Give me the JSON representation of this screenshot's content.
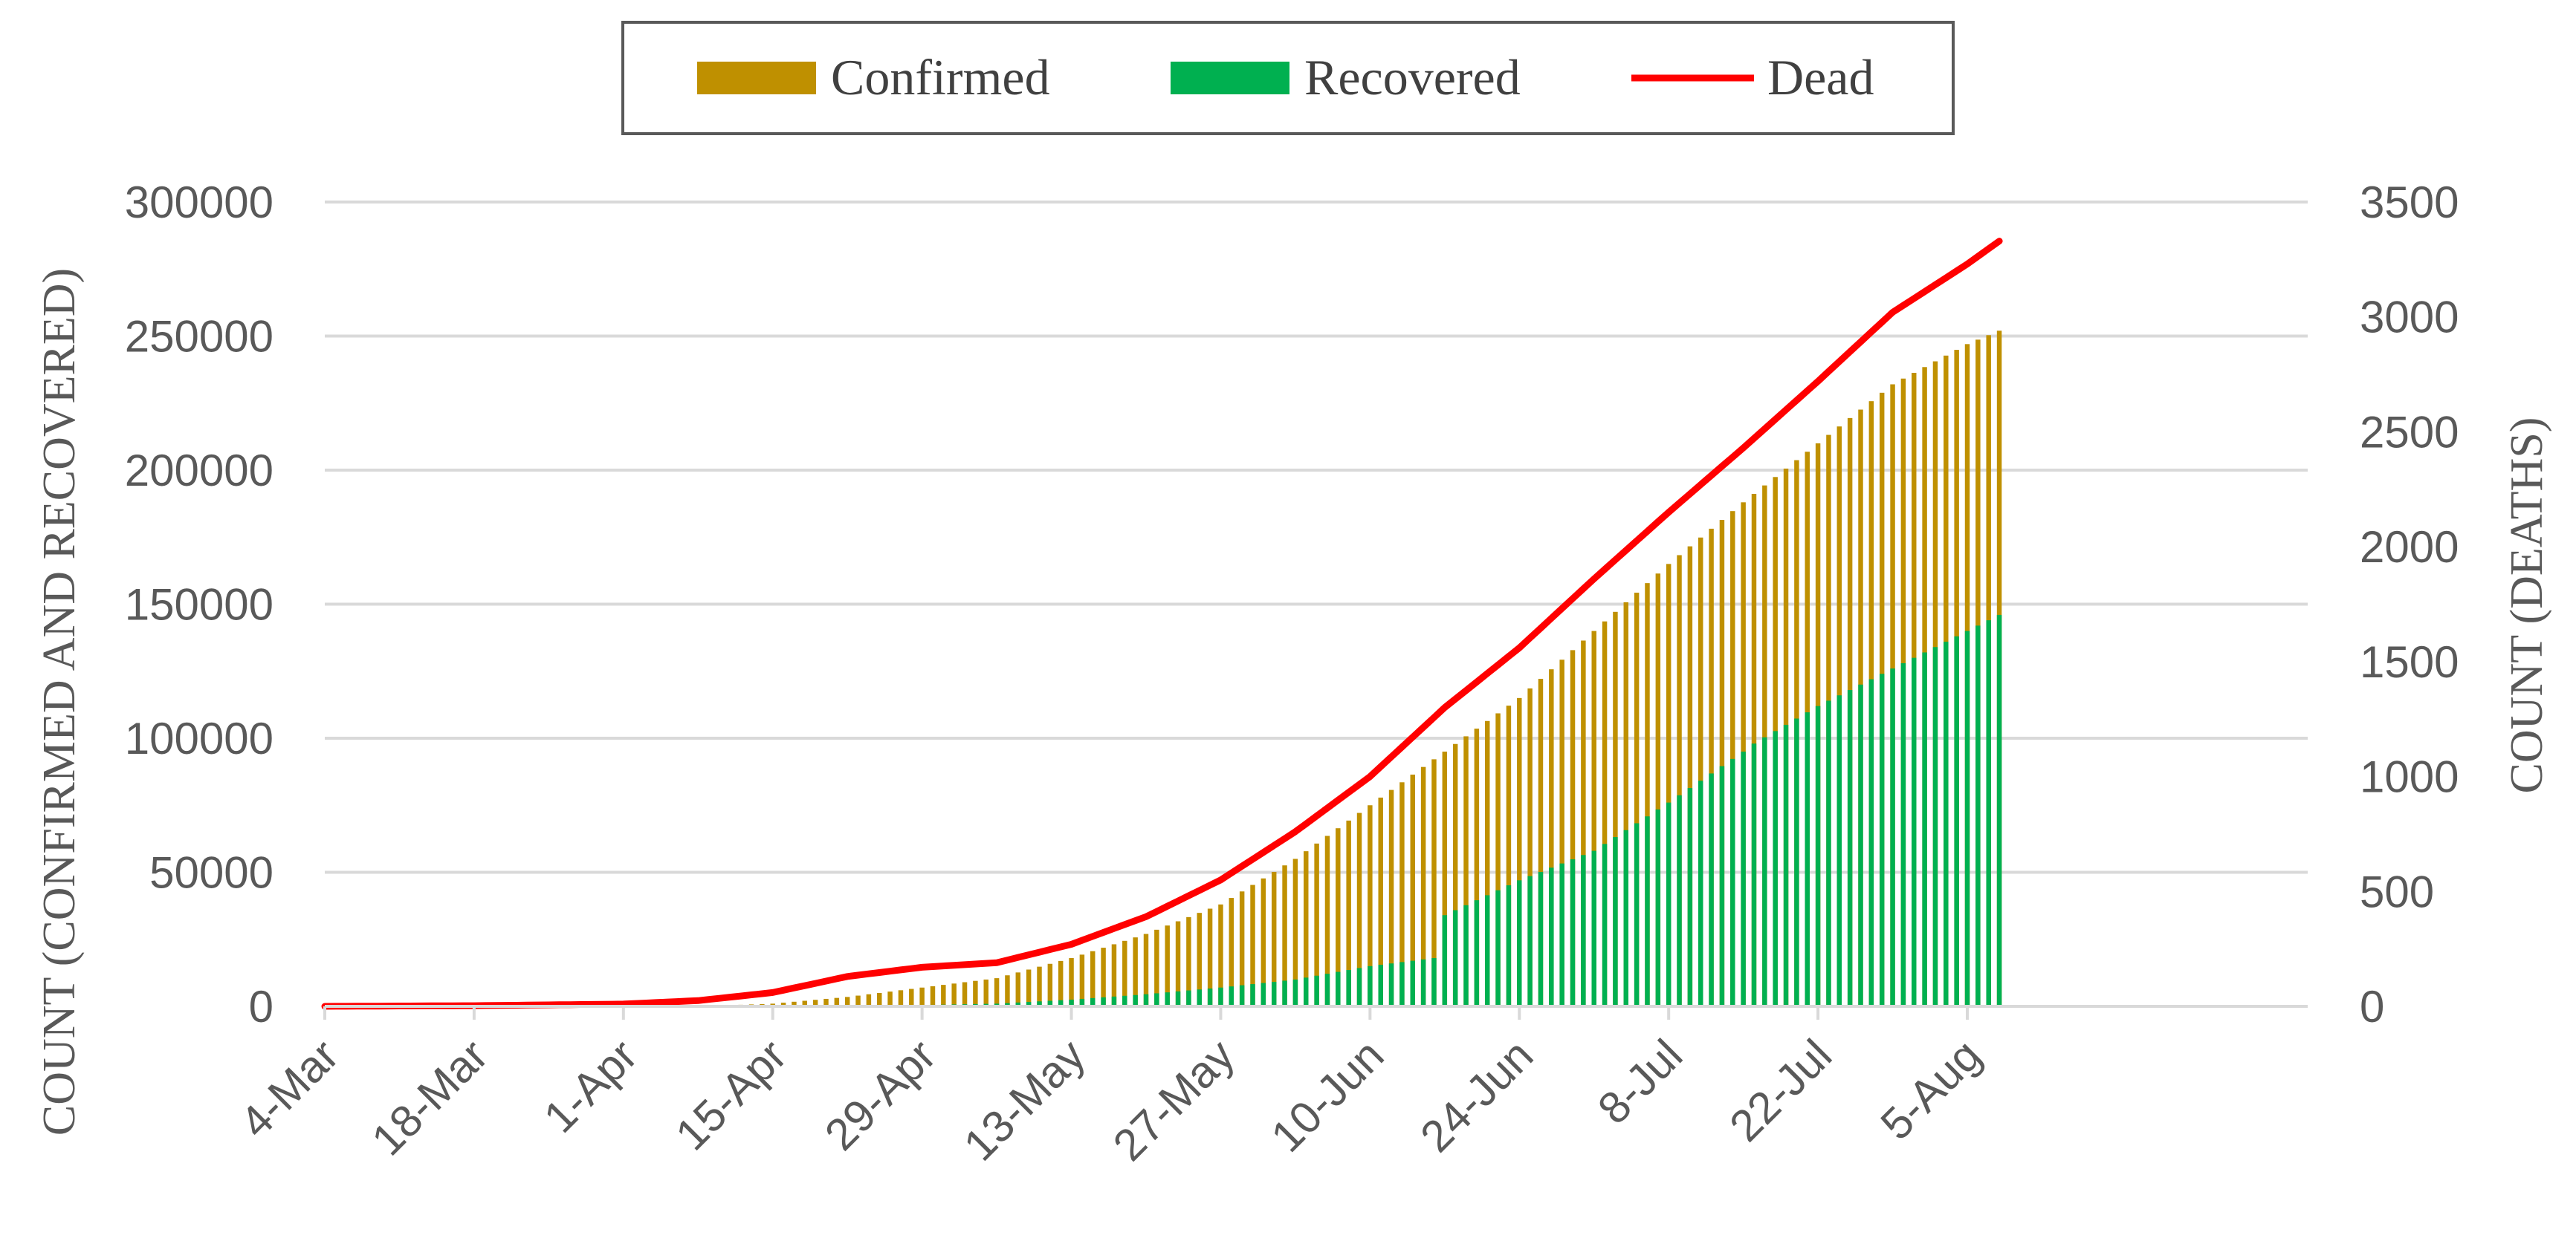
{
  "chart_data": {
    "type": "bar",
    "legend_position": "top",
    "grid": true,
    "colors": {
      "confirmed": "#BF9000",
      "recovered": "#00B050",
      "dead": "#FF0000",
      "grid": "#D9D9D9",
      "text": "#595959"
    },
    "x_start_date": "2020-03-04",
    "x_end_date": "2020-08-08",
    "x_tick_labels": [
      "4-Mar",
      "18-Mar",
      "1-Apr",
      "15-Apr",
      "29-Apr",
      "13-May",
      "27-May",
      "10-Jun",
      "24-Jun",
      "8-Jul",
      "22-Jul",
      "5-Aug"
    ],
    "y_left": {
      "label": "COUNT (CONFIRMED AND RECOVERED)",
      "ylim": [
        0,
        300000
      ],
      "ticks": [
        "0",
        "50000",
        "100000",
        "150000",
        "200000",
        "250000",
        "300000"
      ]
    },
    "y_right": {
      "label": "COUNT (DEATHS)",
      "ylim": [
        0,
        3500
      ],
      "ticks": [
        "0",
        "500",
        "1000",
        "1500",
        "2000",
        "2500",
        "3000",
        "3500"
      ]
    },
    "series": [
      {
        "name": "Confirmed",
        "type": "bar",
        "axis": "left",
        "points": [
          [
            "2020-03-04",
            0
          ],
          [
            "2020-04-01",
            100
          ],
          [
            "2020-04-10",
            300
          ],
          [
            "2020-04-15",
            1000
          ],
          [
            "2020-04-22",
            3500
          ],
          [
            "2020-04-29",
            7000
          ],
          [
            "2020-05-06",
            10500
          ],
          [
            "2020-05-13",
            18000
          ],
          [
            "2020-05-20",
            27000
          ],
          [
            "2020-05-27",
            38000
          ],
          [
            "2020-06-03",
            55000
          ],
          [
            "2020-06-10",
            75000
          ],
          [
            "2020-06-17",
            95000
          ],
          [
            "2020-06-24",
            115000
          ],
          [
            "2020-07-01",
            140000
          ],
          [
            "2020-07-08",
            165000
          ],
          [
            "2020-07-15",
            188000
          ],
          [
            "2020-07-22",
            210000
          ],
          [
            "2020-07-29",
            232000
          ],
          [
            "2020-08-05",
            247000
          ],
          [
            "2020-08-08",
            252000
          ]
        ]
      },
      {
        "name": "Recovered",
        "type": "bar",
        "axis": "left",
        "points": [
          [
            "2020-03-04",
            0
          ],
          [
            "2020-04-15",
            0
          ],
          [
            "2020-04-29",
            500
          ],
          [
            "2020-05-06",
            1000
          ],
          [
            "2020-05-13",
            2500
          ],
          [
            "2020-05-20",
            4500
          ],
          [
            "2020-05-27",
            7000
          ],
          [
            "2020-06-03",
            10000
          ],
          [
            "2020-06-10",
            15000
          ],
          [
            "2020-06-16",
            18000
          ],
          [
            "2020-06-17",
            34000
          ],
          [
            "2020-06-24",
            47000
          ],
          [
            "2020-07-01",
            58000
          ],
          [
            "2020-07-08",
            76000
          ],
          [
            "2020-07-15",
            95000
          ],
          [
            "2020-07-16",
            98000
          ],
          [
            "2020-07-22",
            112000
          ],
          [
            "2020-07-29",
            126000
          ],
          [
            "2020-08-05",
            140000
          ],
          [
            "2020-08-08",
            146000
          ]
        ]
      },
      {
        "name": "Dead",
        "type": "line",
        "axis": "right",
        "points": [
          [
            "2020-03-04",
            0
          ],
          [
            "2020-03-18",
            3
          ],
          [
            "2020-04-01",
            10
          ],
          [
            "2020-04-08",
            25
          ],
          [
            "2020-04-15",
            60
          ],
          [
            "2020-04-22",
            130
          ],
          [
            "2020-04-29",
            170
          ],
          [
            "2020-05-06",
            190
          ],
          [
            "2020-05-13",
            270
          ],
          [
            "2020-05-20",
            390
          ],
          [
            "2020-05-27",
            550
          ],
          [
            "2020-06-03",
            760
          ],
          [
            "2020-06-10",
            1000
          ],
          [
            "2020-06-17",
            1300
          ],
          [
            "2020-06-24",
            1560
          ],
          [
            "2020-07-01",
            1860
          ],
          [
            "2020-07-08",
            2150
          ],
          [
            "2020-07-15",
            2430
          ],
          [
            "2020-07-22",
            2720
          ],
          [
            "2020-07-29",
            3020
          ],
          [
            "2020-08-05",
            3230
          ],
          [
            "2020-08-08",
            3330
          ]
        ]
      }
    ]
  }
}
